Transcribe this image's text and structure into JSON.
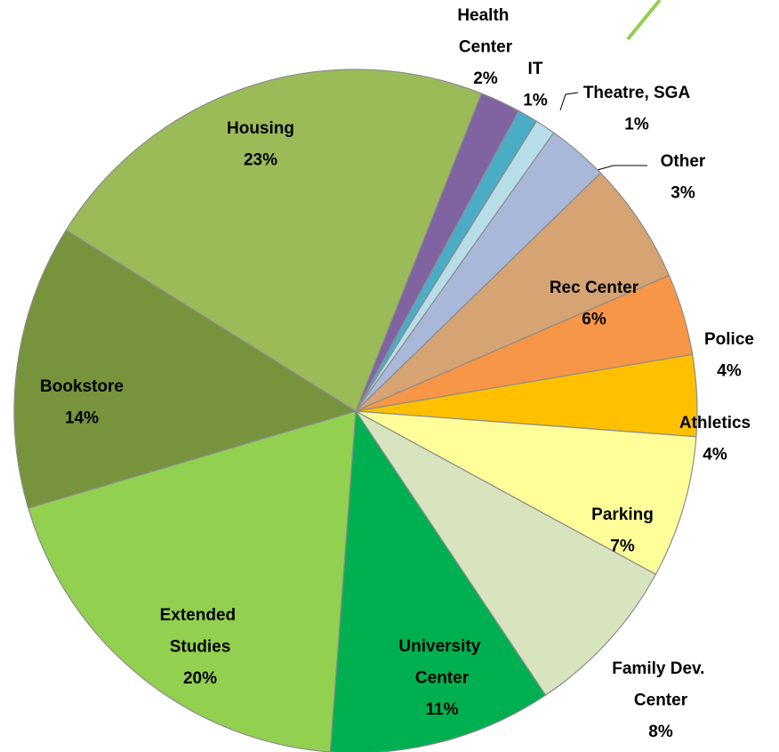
{
  "chart_data": {
    "type": "pie",
    "categories": [
      "Health Center",
      "IT",
      "Theatre, SGA",
      "Other",
      "Rec Center",
      "Police",
      "Athletics",
      "Parking",
      "Family Dev. Center",
      "University Center",
      "Extended Studies",
      "Bookstore",
      "Housing"
    ],
    "values": [
      2,
      1,
      1,
      3,
      6,
      4,
      4,
      7,
      8,
      11,
      20,
      14,
      23
    ],
    "value_labels": [
      "2%",
      "1%",
      "1%",
      "3%",
      "6%",
      "4%",
      "4%",
      "7%",
      "8%",
      "11%",
      "20%",
      "14%",
      "23%"
    ],
    "colors": [
      "#8064a2",
      "#4bacc6",
      "#b7dee8",
      "#a9b8d9",
      "#d6a373",
      "#f79646",
      "#ffc000",
      "#ffff99",
      "#d7e4bd",
      "#00b050",
      "#92d050",
      "#77933c",
      "#9bbb59"
    ]
  }
}
